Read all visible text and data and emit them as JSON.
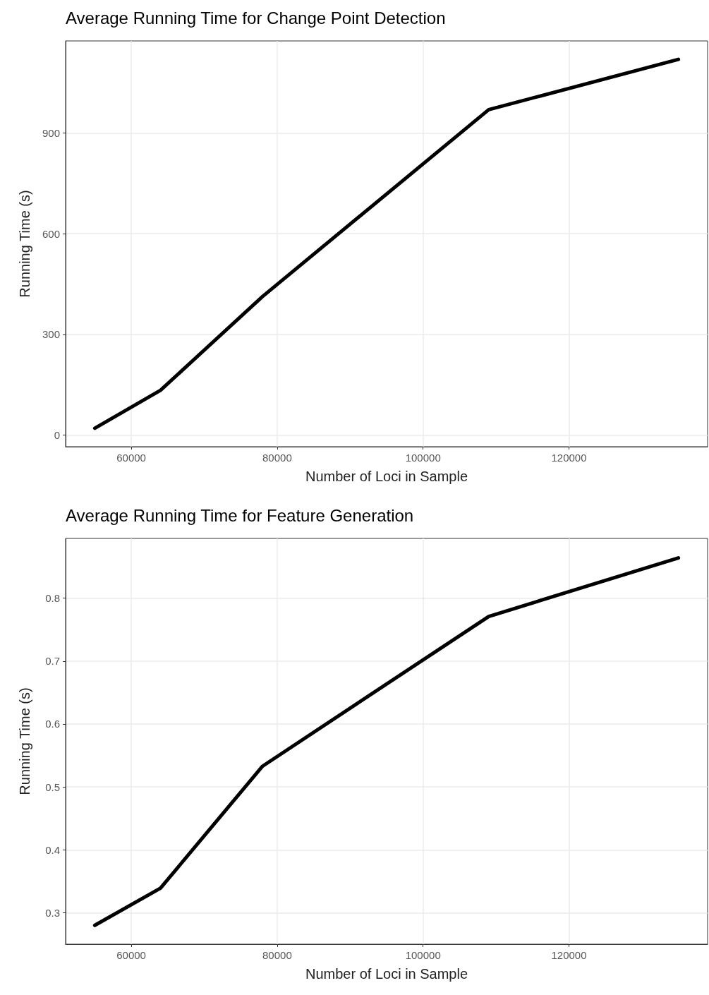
{
  "chart_data": [
    {
      "type": "line",
      "title": "Average Running Time for Change Point Detection",
      "xlabel": "Number of Loci in Sample",
      "ylabel": "Running Time (s)",
      "x": [
        55000,
        64000,
        78000,
        109000,
        135000
      ],
      "series": [
        {
          "color": "#000000",
          "values": [
            20,
            133,
            413,
            970,
            1120
          ]
        }
      ],
      "xlim": [
        51000,
        139000
      ],
      "xticks": [
        60000,
        80000,
        100000,
        120000
      ],
      "ylim": [
        -35,
        1175
      ],
      "yticks": [
        0,
        300,
        600,
        900
      ],
      "grid": true,
      "marker": "none"
    },
    {
      "type": "line",
      "title": "Average Running Time for Feature Generation",
      "xlabel": "Number of Loci in Sample",
      "ylabel": "Running Time (s)",
      "x": [
        55000,
        64000,
        78000,
        109000,
        135000
      ],
      "series": [
        {
          "color": "#000000",
          "values": [
            0.28,
            0.339,
            0.533,
            0.771,
            0.864
          ]
        }
      ],
      "xlim": [
        51000,
        139000
      ],
      "xticks": [
        60000,
        80000,
        100000,
        120000
      ],
      "ylim": [
        0.25,
        0.895
      ],
      "yticks": [
        0.3,
        0.4,
        0.5,
        0.6,
        0.7,
        0.8
      ],
      "grid": true,
      "marker": "none"
    }
  ]
}
